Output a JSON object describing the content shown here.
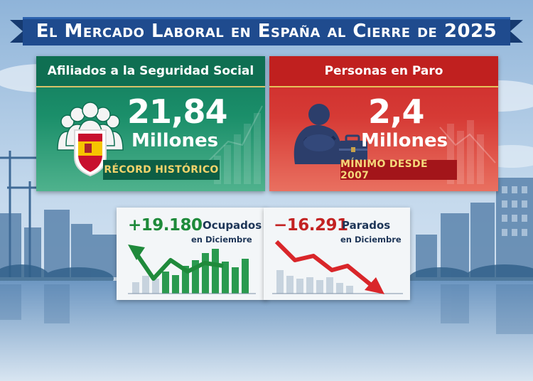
{
  "title": "El Mercado Laboral en España al Cierre de 2025",
  "colors": {
    "banner": "#1e4a8c",
    "green": "#127a5c",
    "red": "#cc2b2b",
    "gold": "#e7c25b"
  },
  "afiliados": {
    "heading": "Afiliados a la Seguridad Social",
    "value": "21,84",
    "unit": "Millones",
    "ribbon": "RÉCORD HISTÓRICO",
    "icon": "people-group-icon"
  },
  "paro": {
    "heading": "Personas en Paro",
    "value": "2,4",
    "unit": "Millones",
    "ribbon": "MÍNIMO DESDE 2007",
    "icon": "sad-person-icon"
  },
  "ocupados": {
    "delta": "+19.180",
    "label": "Ocupados",
    "sub": "en Diciembre",
    "icon": "arrow-up-icon"
  },
  "parados": {
    "delta": "−16.291",
    "label": "Parados",
    "sub": "en Diciembre",
    "icon": "arrow-down-icon"
  }
}
